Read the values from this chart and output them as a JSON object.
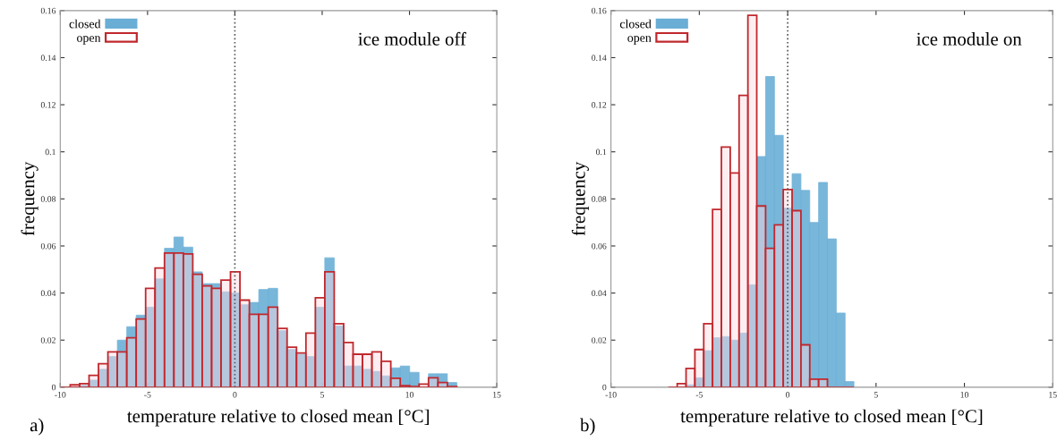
{
  "chart_data": [
    {
      "type": "histogram",
      "xlabel": "temperature relative to closed mean [°C]",
      "ylabel": "frequency",
      "annotations": [
        "ice module off",
        "a)"
      ],
      "bins": [
        -9.97,
        -9.43,
        -8.89,
        -8.35,
        -7.81,
        -7.27,
        -6.73,
        -6.19,
        -5.65,
        -5.11,
        -4.57,
        -4.03,
        -3.49,
        -2.95,
        -2.41,
        -1.87,
        -1.33,
        -0.79,
        -0.25,
        0.29,
        0.83,
        1.37,
        1.91,
        2.45,
        2.99,
        3.53,
        4.07,
        4.61,
        5.15,
        5.69,
        6.23,
        6.77,
        7.31,
        7.85,
        8.39,
        8.93,
        9.47,
        10.01,
        10.55,
        11.09,
        11.63,
        12.17,
        12.71
      ],
      "series": [
        {
          "name": "closed",
          "color": "#6aaed6",
          "values": [
            null,
            null,
            0.0008,
            0.003,
            0.0076,
            0.013,
            0.02,
            0.0257,
            0.0306,
            0.034,
            0.046,
            0.059,
            0.0638,
            0.0595,
            0.049,
            0.044,
            0.044,
            0.0405,
            0.04,
            0.035,
            0.036,
            0.0415,
            0.042,
            0.024,
            0.016,
            0.014,
            0.013,
            0.034,
            0.055,
            0.026,
            0.009,
            0.009,
            0.0076,
            0.0067,
            0.0048,
            0.0082,
            0.009,
            0.0063,
            null,
            0.0057,
            0.0057,
            0.002
          ]
        },
        {
          "name": "open",
          "color": "#c0282d",
          "values": [
            null,
            0.001,
            0.0015,
            0.005,
            0.01,
            0.015,
            0.015,
            0.021,
            0.029,
            0.042,
            0.0506,
            0.057,
            0.057,
            0.0566,
            0.048,
            0.043,
            0.042,
            0.0455,
            0.049,
            0.037,
            0.031,
            0.031,
            0.034,
            0.025,
            0.017,
            0.0145,
            0.023,
            0.038,
            0.049,
            0.027,
            0.019,
            0.014,
            0.014,
            0.015,
            0.011,
            0.0038,
            0.0006,
            0.0003,
            0.0013,
            0.004,
            0.002,
            0.0003
          ]
        }
      ],
      "xlim": [
        -10,
        15
      ],
      "xticks": [
        -10,
        -5,
        0,
        5,
        10,
        15
      ],
      "ylim": [
        0,
        0.16
      ],
      "yticks": [
        0,
        0.02,
        0.04,
        0.06,
        0.08,
        0.1,
        0.12,
        0.14,
        0.16
      ],
      "ref_lines": [
        {
          "axis": "x",
          "value": 0,
          "color": "#555555",
          "line_style": "dotted"
        }
      ],
      "grid": false,
      "legend": "top left"
    },
    {
      "type": "histogram",
      "xlabel": "temperature relative to closed mean [°C]",
      "ylabel": "frequency",
      "annotations": [
        "ice module on",
        "b)"
      ],
      "bins": [
        -6.75,
        -6.25,
        -5.75,
        -5.25,
        -4.75,
        -4.25,
        -3.75,
        -3.25,
        -2.75,
        -2.25,
        -1.75,
        -1.25,
        -0.75,
        -0.25,
        0.25,
        0.75,
        1.25,
        1.75,
        2.25,
        2.75,
        3.25,
        3.75
      ],
      "series": [
        {
          "name": "closed",
          "color": "#6aaed6",
          "values": [
            0,
            0,
            0.001,
            0.004,
            0.0155,
            0.021,
            0.0215,
            0.02,
            0.023,
            0.0435,
            0.098,
            0.132,
            0.107,
            0.076,
            0.0907,
            0.0836,
            0.07,
            0.087,
            0.063,
            0.0315,
            0.0024
          ]
        },
        {
          "name": "open",
          "color": "#c0282d",
          "values": [
            null,
            0.0015,
            0.008,
            0.016,
            0.027,
            0.0755,
            0.102,
            0.091,
            0.124,
            0.158,
            0.077,
            0.059,
            0.069,
            0.084,
            0.075,
            0.018,
            0.0034,
            0.0034,
            0,
            0,
            0
          ]
        }
      ],
      "xlim": [
        -10,
        15
      ],
      "xticks": [
        -10,
        -5,
        0,
        5,
        10,
        15
      ],
      "ylim": [
        0,
        0.16
      ],
      "yticks": [
        0,
        0.02,
        0.04,
        0.06,
        0.08,
        0.1,
        0.12,
        0.14,
        0.16
      ],
      "ref_lines": [
        {
          "axis": "x",
          "value": 0,
          "color": "#555555",
          "line_style": "dotted"
        }
      ],
      "grid": false,
      "legend": "top left"
    }
  ]
}
